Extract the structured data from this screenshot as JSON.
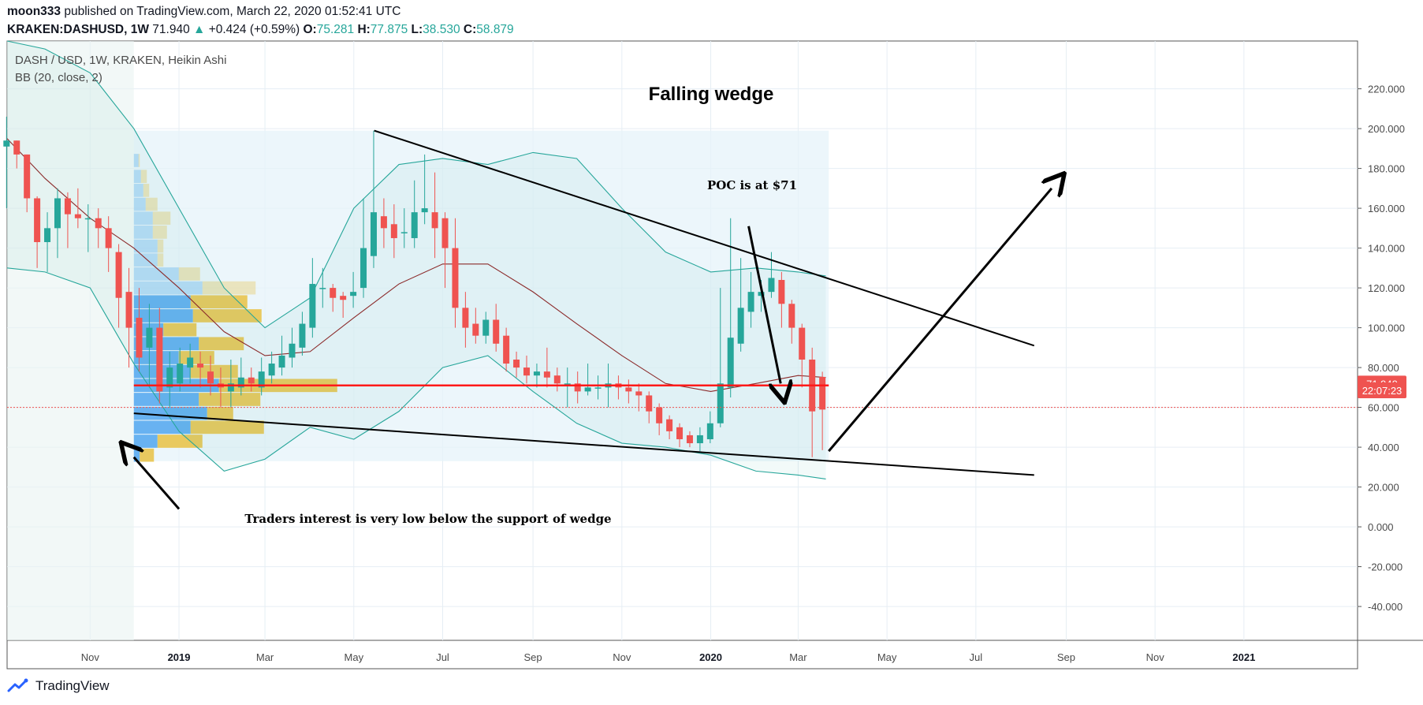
{
  "header": {
    "author": "moon333",
    "published_text": "published on TradingView.com, March 22, 2020 01:52:41 UTC",
    "symbol": "KRAKEN:DASHUSD, 1W",
    "last": "71.940",
    "change": "+0.424 (+0.59%)",
    "o_label": "O:",
    "o": "75.281",
    "h_label": "H:",
    "h": "77.875",
    "l_label": "L:",
    "l": "38.530",
    "c_label": "C:",
    "c": "58.879"
  },
  "legend": {
    "title": "DASH / USD, 1W, KRAKEN, Heikin Ashi",
    "indicator": "BB (20, close, 2)"
  },
  "brand": {
    "name": "TradingView"
  },
  "annotations": {
    "falling_wedge": "Falling wedge",
    "poc": "POC is at $71",
    "traders": "Traders interest is very low below the support of wedge"
  },
  "price_tags": {
    "last": "71.940",
    "countdown": "22:07:23"
  },
  "colors": {
    "up": "#26a69a",
    "down": "#ef5350",
    "band": "#26a69a",
    "basis": "#8b2a2a",
    "poc_line": "#ff1a1a",
    "vp_up": "#5aabf0",
    "vp_down": "#e9c44e",
    "grid": "#e6eef4"
  },
  "chart_data": {
    "type": "candlestick",
    "title": "DASH / USD, 1W, KRAKEN, Heikin Ashi",
    "y_ticks": [
      220,
      200,
      180,
      160,
      140,
      120,
      100,
      80,
      60,
      40,
      20,
      0,
      -20,
      -40
    ],
    "y_range": [
      -57,
      244
    ],
    "x_ticks": [
      "Nov",
      "2019",
      "Mar",
      "May",
      "Jul",
      "Sep",
      "Nov",
      "2020",
      "Mar",
      "May",
      "Jul",
      "Sep",
      "Nov",
      "2021"
    ],
    "x_tick_dates": [
      "2018-11-01",
      "2019-01-01",
      "2019-03-01",
      "2019-05-01",
      "2019-07-01",
      "2019-09-01",
      "2019-11-01",
      "2020-01-01",
      "2020-03-01",
      "2020-05-01",
      "2020-07-01",
      "2020-09-01",
      "2020-11-01",
      "2021-01-01"
    ],
    "x_range": [
      "2018-09-05",
      "2021-03-20"
    ],
    "candles": [
      [
        "2018-09-03",
        191,
        194,
        206,
        160
      ],
      [
        "2018-09-10",
        194,
        187,
        194,
        180
      ],
      [
        "2018-09-17",
        187,
        165,
        187,
        158
      ],
      [
        "2018-09-24",
        165,
        143,
        166,
        130
      ],
      [
        "2018-10-01",
        143,
        150,
        158,
        128
      ],
      [
        "2018-10-08",
        150,
        165,
        170,
        135
      ],
      [
        "2018-10-15",
        165,
        157,
        168,
        140
      ],
      [
        "2018-10-22",
        157,
        155,
        170,
        150
      ],
      [
        "2018-10-29",
        155,
        155,
        162,
        138
      ],
      [
        "2018-11-05",
        155,
        150,
        160,
        140
      ],
      [
        "2018-11-12",
        150,
        140,
        156,
        128
      ],
      [
        "2018-11-19",
        138,
        115,
        142,
        100
      ],
      [
        "2018-11-26",
        118,
        100,
        130,
        80
      ],
      [
        "2018-12-03",
        105,
        85,
        120,
        78
      ],
      [
        "2018-12-10",
        90,
        100,
        112,
        70
      ],
      [
        "2018-12-17",
        100,
        68,
        110,
        62
      ],
      [
        "2018-12-24",
        70,
        80,
        88,
        60
      ],
      [
        "2018-12-31",
        72,
        82,
        90,
        68
      ],
      [
        "2019-01-07",
        80,
        85,
        92,
        72
      ],
      [
        "2019-01-14",
        82,
        80,
        88,
        70
      ],
      [
        "2019-01-21",
        78,
        72,
        86,
        66
      ],
      [
        "2019-01-28",
        72,
        70,
        80,
        60
      ],
      [
        "2019-02-04",
        68,
        72,
        84,
        60
      ],
      [
        "2019-02-11",
        70,
        75,
        85,
        66
      ],
      [
        "2019-02-18",
        75,
        72,
        80,
        68
      ],
      [
        "2019-02-25",
        70,
        78,
        85,
        66
      ],
      [
        "2019-03-04",
        76,
        82,
        88,
        72
      ],
      [
        "2019-03-11",
        80,
        86,
        96,
        76
      ],
      [
        "2019-03-18",
        85,
        92,
        100,
        80
      ],
      [
        "2019-03-25",
        90,
        102,
        108,
        86
      ],
      [
        "2019-04-01",
        100,
        122,
        135,
        95
      ],
      [
        "2019-04-08",
        120,
        120,
        130,
        110
      ],
      [
        "2019-04-15",
        120,
        115,
        122,
        108
      ],
      [
        "2019-04-22",
        116,
        114,
        118,
        105
      ],
      [
        "2019-04-29",
        116,
        118,
        128,
        110
      ],
      [
        "2019-05-06",
        120,
        140,
        165,
        115
      ],
      [
        "2019-05-13",
        136,
        158,
        199,
        130
      ],
      [
        "2019-05-20",
        156,
        150,
        165,
        140
      ],
      [
        "2019-05-27",
        152,
        145,
        162,
        135
      ],
      [
        "2019-06-03",
        148,
        148,
        160,
        140
      ],
      [
        "2019-06-10",
        145,
        158,
        174,
        140
      ],
      [
        "2019-06-17",
        158,
        160,
        187,
        152
      ],
      [
        "2019-06-24",
        158,
        150,
        178,
        135
      ],
      [
        "2019-07-01",
        155,
        140,
        158,
        120
      ],
      [
        "2019-07-08",
        140,
        110,
        155,
        100
      ],
      [
        "2019-07-15",
        110,
        100,
        118,
        90
      ],
      [
        "2019-07-22",
        102,
        96,
        110,
        92
      ],
      [
        "2019-07-29",
        96,
        104,
        108,
        92
      ],
      [
        "2019-08-05",
        104,
        92,
        112,
        88
      ],
      [
        "2019-08-12",
        96,
        82,
        100,
        78
      ],
      [
        "2019-08-19",
        84,
        80,
        88,
        75
      ],
      [
        "2019-08-26",
        80,
        76,
        86,
        72
      ],
      [
        "2019-09-02",
        76,
        78,
        82,
        70
      ],
      [
        "2019-09-09",
        78,
        75,
        90,
        70
      ],
      [
        "2019-09-16",
        76,
        72,
        80,
        68
      ],
      [
        "2019-09-23",
        72,
        72,
        80,
        60
      ],
      [
        "2019-09-30",
        72,
        68,
        78,
        62
      ],
      [
        "2019-10-07",
        68,
        70,
        82,
        66
      ],
      [
        "2019-10-14",
        70,
        70,
        76,
        64
      ],
      [
        "2019-10-21",
        70,
        72,
        82,
        60
      ],
      [
        "2019-10-28",
        72,
        70,
        76,
        64
      ],
      [
        "2019-11-04",
        70,
        68,
        74,
        62
      ],
      [
        "2019-11-11",
        68,
        66,
        72,
        58
      ],
      [
        "2019-11-18",
        66,
        58,
        68,
        52
      ],
      [
        "2019-11-25",
        60,
        52,
        62,
        46
      ],
      [
        "2019-12-02",
        54,
        48,
        56,
        44
      ],
      [
        "2019-12-09",
        50,
        44,
        52,
        40
      ],
      [
        "2019-12-16",
        46,
        42,
        48,
        40
      ],
      [
        "2019-12-23",
        42,
        46,
        50,
        38
      ],
      [
        "2019-12-30",
        44,
        52,
        58,
        42
      ],
      [
        "2020-01-06",
        52,
        72,
        120,
        50
      ],
      [
        "2020-01-13",
        70,
        95,
        155,
        65
      ],
      [
        "2020-01-20",
        92,
        110,
        135,
        88
      ],
      [
        "2020-01-27",
        108,
        118,
        128,
        100
      ],
      [
        "2020-02-03",
        116,
        118,
        124,
        108
      ],
      [
        "2020-02-10",
        118,
        125,
        138,
        115
      ],
      [
        "2020-02-17",
        124,
        112,
        128,
        100
      ],
      [
        "2020-02-24",
        112,
        100,
        114,
        92
      ],
      [
        "2020-03-02",
        100,
        84,
        102,
        70
      ],
      [
        "2020-03-09",
        84,
        58,
        90,
        35
      ],
      [
        "2020-03-16",
        75.3,
        58.9,
        77.9,
        38.5
      ]
    ],
    "bollinger": {
      "dates": [
        "2018-09-05",
        "2018-10-01",
        "2018-11-01",
        "2018-12-01",
        "2019-01-01",
        "2019-02-01",
        "2019-03-01",
        "2019-04-01",
        "2019-05-01",
        "2019-06-01",
        "2019-07-01",
        "2019-08-01",
        "2019-09-01",
        "2019-10-01",
        "2019-11-01",
        "2019-12-01",
        "2020-01-01",
        "2020-02-01",
        "2020-03-01",
        "2020-03-20"
      ],
      "upper": [
        250,
        240,
        228,
        200,
        160,
        120,
        100,
        115,
        160,
        182,
        185,
        182,
        188,
        185,
        160,
        138,
        128,
        130,
        128,
        126
      ],
      "basis": [
        195,
        175,
        155,
        140,
        120,
        98,
        86,
        88,
        105,
        122,
        132,
        132,
        118,
        102,
        86,
        72,
        68,
        72,
        76,
        75
      ],
      "lower": [
        130,
        128,
        120,
        82,
        48,
        28,
        34,
        50,
        44,
        58,
        80,
        86,
        68,
        52,
        42,
        40,
        36,
        28,
        26,
        24
      ]
    },
    "volume_profile": {
      "price_levels": [
        36,
        43,
        50,
        57,
        64,
        71,
        78,
        85,
        92,
        99,
        106,
        113,
        120,
        127,
        134,
        141,
        148,
        155,
        162,
        169,
        176,
        184
      ],
      "up_volume": [
        5,
        20,
        48,
        62,
        55,
        72,
        48,
        38,
        55,
        25,
        50,
        48,
        58,
        38,
        20,
        20,
        16,
        16,
        10,
        8,
        6,
        4
      ],
      "down_volume": [
        12,
        38,
        62,
        22,
        52,
        100,
        40,
        30,
        38,
        28,
        58,
        48,
        45,
        18,
        5,
        5,
        12,
        15,
        10,
        5,
        5,
        1
      ]
    },
    "poc_price": 71,
    "trendlines": {
      "resistance": [
        [
          "2019-05-15",
          199
        ],
        [
          "2020-08-10",
          91
        ]
      ],
      "support": [
        [
          "2018-12-01",
          57
        ],
        [
          "2020-08-10",
          26
        ]
      ],
      "arrows": [
        {
          "from": [
            "2020-03-22",
            38
          ],
          "to": [
            "2020-08-22",
            170
          ]
        },
        {
          "from": [
            "2019-01-01",
            9
          ],
          "to": [
            "2018-12-01",
            35
          ]
        },
        {
          "from": [
            "2020-01-27",
            151
          ],
          "to": [
            "2020-02-18",
            72
          ]
        }
      ]
    },
    "regions": [
      {
        "from": "2018-09-05",
        "to": "2018-12-01",
        "low": -57,
        "high": 244
      },
      {
        "from": "2018-12-01",
        "to": "2020-03-22",
        "low": 33,
        "high": 199
      }
    ],
    "last_price": 71.94,
    "current_price_line": 60
  }
}
